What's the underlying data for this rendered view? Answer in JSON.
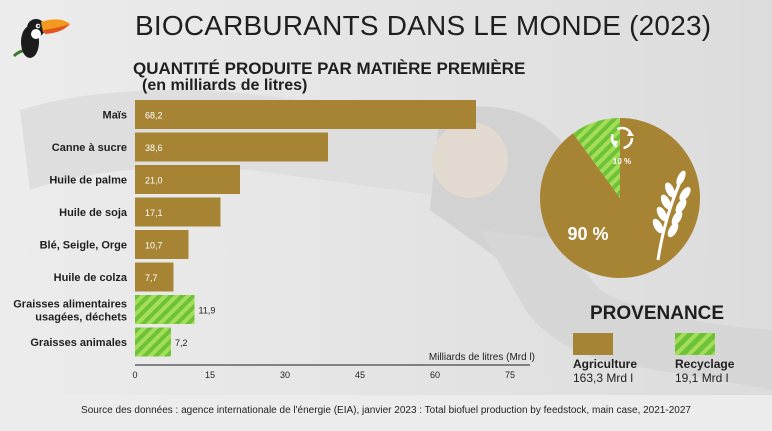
{
  "title": "BIOCARBURANTS DANS LE MONDE (2023)",
  "subtitle": "QUANTITÉ PRODUITE PAR MATIÈRE PREMIÈRE",
  "subtitle_units": "(en milliards de litres)",
  "colors": {
    "agriculture": "#a68434",
    "recycling": "#6ec23a",
    "recycling_light": "#a4dd56",
    "text": "#1f1f1f"
  },
  "icons": [
    "toucan-logo",
    "fuel-pump-background",
    "recycle-icon",
    "wheat-icon"
  ],
  "chart_data": [
    {
      "type": "bar",
      "orientation": "horizontal",
      "categories": [
        "Maïs",
        "Canne à sucre",
        "Huile de palme",
        "Huile de soja",
        "Blé, Seigle, Orge",
        "Huile de colza",
        "Graisses alimentaires usagées, déchets",
        "Graisses animales"
      ],
      "values": [
        68.2,
        38.6,
        21.0,
        17.1,
        10.7,
        7.7,
        11.9,
        7.2
      ],
      "value_labels": [
        "68,2",
        "38,6",
        "21,0",
        "17,1",
        "10,7",
        "7,7",
        "11,9",
        "7,2"
      ],
      "groups": [
        "agriculture",
        "agriculture",
        "agriculture",
        "agriculture",
        "agriculture",
        "agriculture",
        "recycling",
        "recycling"
      ],
      "xlabel": "Milliards de litres (Mrd l)",
      "xlim": [
        0,
        75
      ],
      "xticks": [
        0,
        15,
        30,
        45,
        60,
        75
      ],
      "grid": false
    },
    {
      "type": "pie",
      "categories": [
        "Agriculture",
        "Recyclage"
      ],
      "values": [
        90,
        10
      ],
      "value_labels": [
        "90 %",
        "10 %"
      ],
      "legend_title": "PROVENANCE",
      "legend_values": [
        "163,3 Mrd l",
        "19,1 Mrd l"
      ],
      "legend_position": "bottom"
    }
  ],
  "footer": "Source des données : agence internationale de l'énergie (EIA), janvier 2023 : Total biofuel production by feedstock, main case, 2021-2027"
}
